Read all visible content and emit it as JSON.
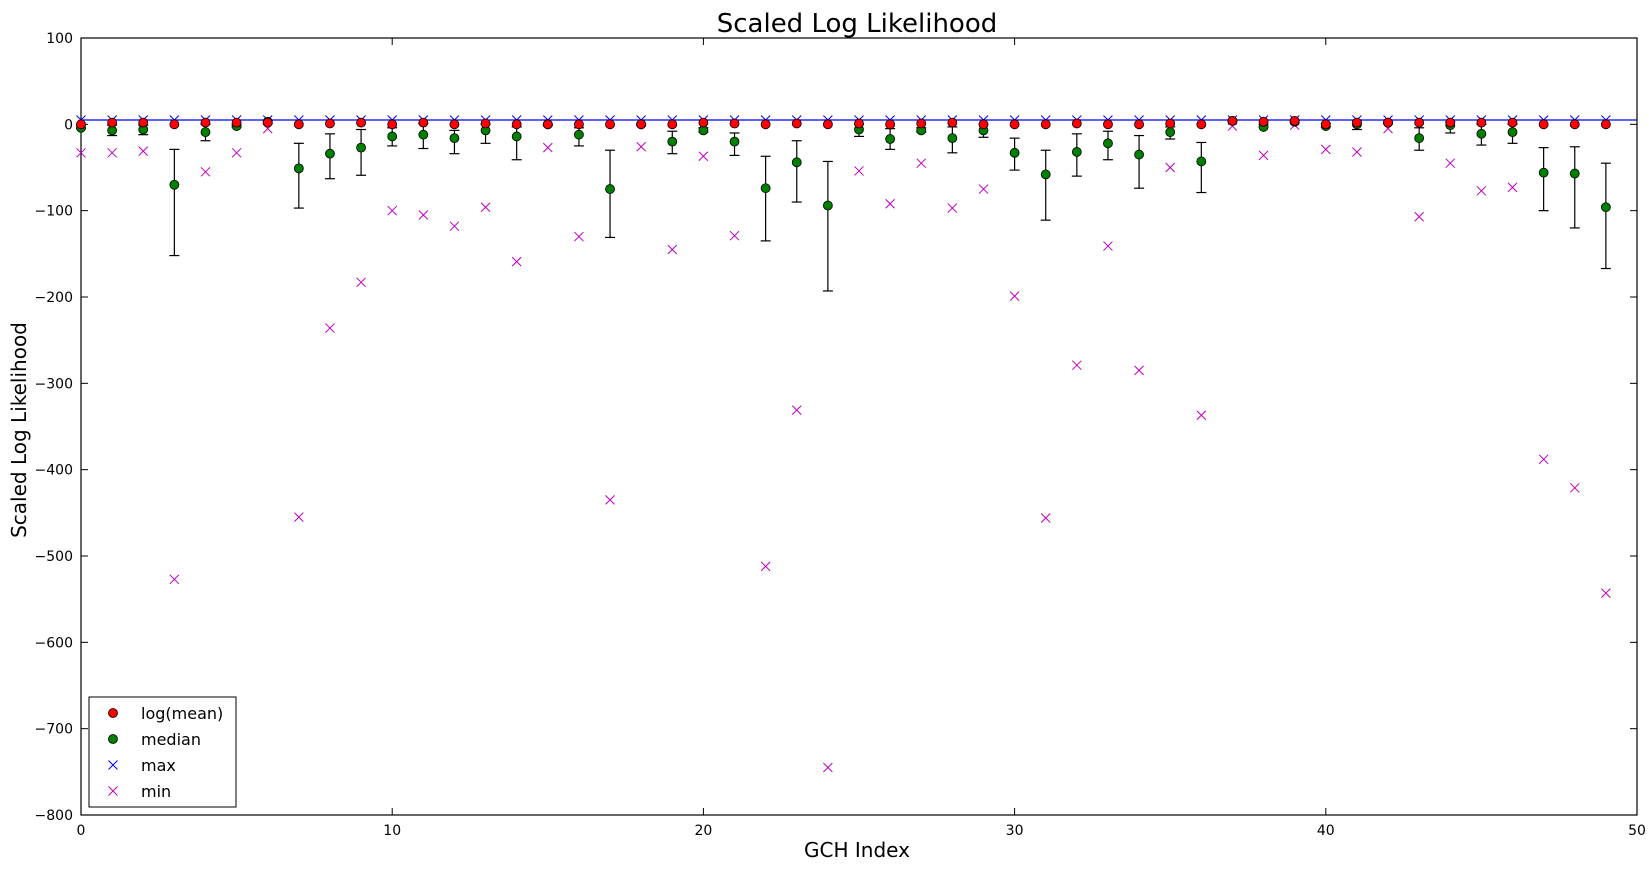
{
  "chart_data": {
    "type": "scatter",
    "title": "Scaled Log Likelihood",
    "xlabel": "GCH Index",
    "ylabel": "Scaled Log Likelihood",
    "xlim": [
      0,
      50
    ],
    "ylim": [
      -800,
      100
    ],
    "xticks": [
      0,
      10,
      20,
      30,
      40,
      50
    ],
    "yticks": [
      100,
      0,
      -100,
      -200,
      -300,
      -400,
      -500,
      -600,
      -700,
      -800
    ],
    "ytick_labels": [
      "100",
      "0",
      "−100",
      "−200",
      "−300",
      "−400",
      "−500",
      "−600",
      "−700",
      "−800"
    ],
    "reference_line": {
      "y": 5,
      "color": "#0000ff"
    },
    "legend": {
      "location": "lower-left"
    },
    "x": [
      0,
      1,
      2,
      3,
      4,
      5,
      6,
      7,
      8,
      9,
      10,
      11,
      12,
      13,
      14,
      15,
      16,
      17,
      18,
      19,
      20,
      21,
      22,
      23,
      24,
      25,
      26,
      27,
      28,
      29,
      30,
      31,
      32,
      33,
      34,
      35,
      36,
      37,
      38,
      39,
      40,
      41,
      42,
      43,
      44,
      45,
      46,
      47,
      48,
      49
    ],
    "series": [
      {
        "name": "log(mean)",
        "marker": "circle",
        "color": "#ff0000",
        "values": [
          0,
          2,
          2,
          0,
          2,
          2,
          2,
          0,
          1,
          2,
          0,
          2,
          0,
          1,
          0,
          0,
          0,
          0,
          0,
          0,
          2,
          1,
          0,
          1,
          0,
          1,
          0,
          1,
          2,
          0,
          0,
          0,
          1,
          0,
          0,
          1,
          0,
          4,
          3,
          4,
          0,
          2,
          2,
          2,
          2,
          2,
          2,
          0,
          0,
          0
        ]
      },
      {
        "name": "median",
        "marker": "circle",
        "color": "#007f00",
        "values": [
          -4,
          -7,
          -6,
          -70,
          -9,
          -2,
          3,
          -51,
          -34,
          -27,
          -14,
          -12,
          -16,
          -7,
          -14,
          0,
          -12,
          -75,
          0,
          -20,
          -7,
          -20,
          -74,
          -44,
          -94,
          -6,
          -17,
          -7,
          -16,
          -7,
          -33,
          -58,
          -32,
          -22,
          -35,
          -9,
          -43,
          4,
          -3,
          3,
          -2,
          0,
          2,
          -16,
          -1,
          -11,
          -9,
          -56,
          -57,
          -96
        ]
      },
      {
        "name": "max",
        "marker": "x",
        "color": "#0000ff",
        "values": [
          5,
          5,
          5,
          5,
          5,
          5,
          5,
          5,
          5,
          5,
          5,
          5,
          5,
          5,
          5,
          5,
          5,
          5,
          5,
          5,
          5,
          5,
          5,
          5,
          5,
          5,
          5,
          5,
          5,
          5,
          5,
          5,
          5,
          5,
          5,
          5,
          5,
          5,
          5,
          5,
          5,
          5,
          5,
          5,
          5,
          5,
          5,
          5,
          5,
          5
        ]
      },
      {
        "name": "min",
        "marker": "x",
        "color": "#bf00bf",
        "values": [
          -33,
          -33,
          -31,
          -527,
          -55,
          -33,
          -5,
          -455,
          -236,
          -183,
          -100,
          -105,
          -118,
          -96,
          -159,
          -27,
          -130,
          -435,
          -26,
          -145,
          -37,
          -129,
          -512,
          -331,
          -745,
          -54,
          -92,
          -45,
          -97,
          -75,
          -199,
          -456,
          -279,
          -141,
          -285,
          -50,
          -337,
          -2,
          -36,
          -1,
          -29,
          -32,
          -5,
          -107,
          -45,
          -77,
          -73,
          -388,
          -421,
          -543
        ]
      }
    ],
    "error_bars": {
      "series": "median",
      "low": [
        -5,
        -13,
        -12,
        -152,
        -19,
        -3,
        1,
        -97,
        -63,
        -59,
        -25,
        -28,
        -34,
        -22,
        -41,
        -1,
        -25,
        -131,
        -1,
        -34,
        -9,
        -36,
        -135,
        -90,
        -193,
        -14,
        -29,
        -9,
        -33,
        -15,
        -53,
        -111,
        -60,
        -41,
        -74,
        -17,
        -79,
        3,
        -3,
        2,
        -3,
        -6,
        1,
        -30,
        -10,
        -24,
        -22,
        -100,
        -120,
        -167
      ],
      "high": [
        -1,
        -1,
        -1,
        -29,
        0,
        0,
        4,
        -22,
        -11,
        -6,
        -4,
        1,
        -7,
        0,
        -3,
        0,
        -4,
        -30,
        1,
        -8,
        -4,
        -10,
        -37,
        -19,
        -43,
        0,
        -5,
        -4,
        -3,
        0,
        -16,
        -30,
        -11,
        -8,
        -13,
        -3,
        -21,
        5,
        0,
        4,
        1,
        4,
        3,
        -4,
        3,
        0,
        0,
        -27,
        -26,
        -45
      ]
    }
  }
}
